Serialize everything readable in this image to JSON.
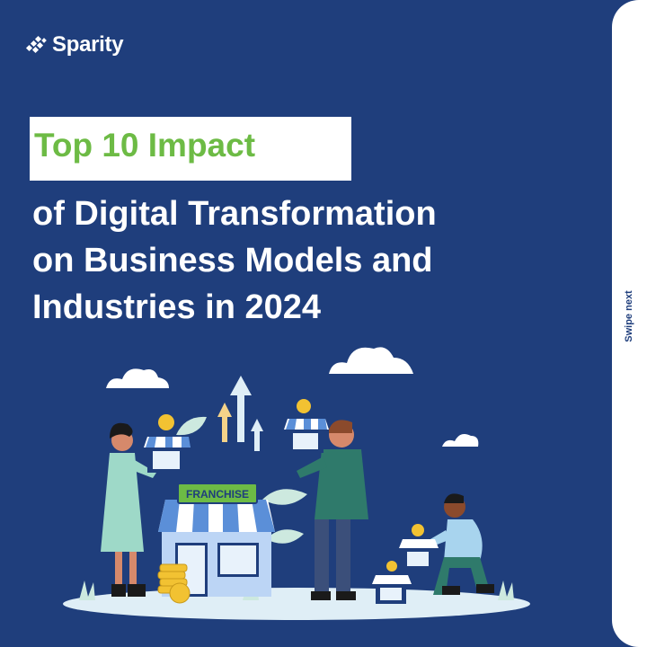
{
  "brand": {
    "name": "Sparity"
  },
  "title": {
    "highlight": "Top 10 Impact",
    "line1": "of Digital Transformation",
    "line2": "on Business Models and",
    "line3": "Industries in 2024"
  },
  "illustration": {
    "sign_text": "FRANCHISE"
  },
  "side": {
    "swipe_label": "Swipe next"
  },
  "colors": {
    "background": "#1f3e7c",
    "accent_green": "#6dbb45",
    "white": "#ffffff"
  }
}
